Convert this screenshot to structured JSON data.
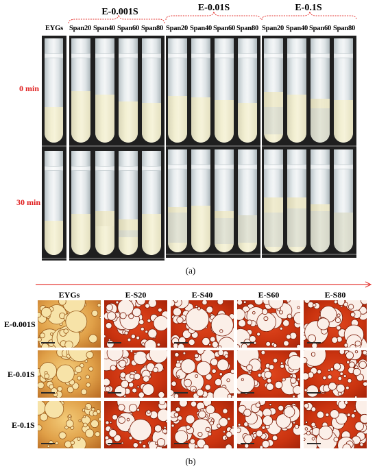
{
  "panel_a": {
    "groups": [
      {
        "title": "E-0.001S"
      },
      {
        "title": "E-0.01S"
      },
      {
        "title": "E-0.1S"
      }
    ],
    "column_labels": [
      "EYGs",
      "Span20",
      "Span40",
      "Span60",
      "Span80",
      "Span20",
      "Span40",
      "Span60",
      "Span80",
      "Span20",
      "Span40",
      "Span60",
      "Span80"
    ],
    "time_labels": [
      "0 min",
      "30 min"
    ],
    "caption": "(a)"
  },
  "panel_b": {
    "column_headers": [
      "EYGs",
      "E-S20",
      "E-S40",
      "E-S60",
      "E-S80"
    ],
    "row_labels": [
      "E-0.001S",
      "E-0.01S",
      "E-0.1S"
    ],
    "caption": "(b)"
  },
  "colors": {
    "accent": "#e53935",
    "time_label": "#e02020",
    "micro_yellow": "#e0a048",
    "micro_red": "#c9330f"
  }
}
